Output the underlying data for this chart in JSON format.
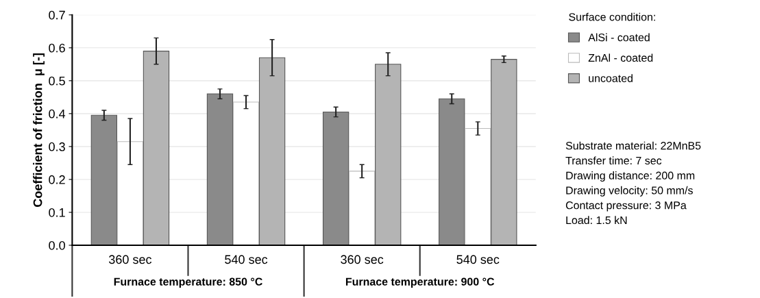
{
  "chart_data": {
    "type": "bar",
    "ylabel": "Coefficient of friction  μ [-]",
    "categories": [
      "360 sec",
      "540 sec",
      "360 sec",
      "540 sec"
    ],
    "series": [
      {
        "name": "AlSi - coated",
        "color": "#8a8a8a",
        "values": [
          0.395,
          0.46,
          0.405,
          0.445
        ],
        "errors": [
          0.015,
          0.015,
          0.015,
          0.015
        ]
      },
      {
        "name": "ZnAl - coated",
        "color": "#ffffff",
        "values": [
          0.315,
          0.435,
          0.225,
          0.355
        ],
        "errors": [
          0.07,
          0.02,
          0.02,
          0.02
        ]
      },
      {
        "name": "uncoated",
        "color": "#b4b4b4",
        "values": [
          0.59,
          0.57,
          0.55,
          0.565
        ],
        "errors": [
          0.04,
          0.055,
          0.035,
          0.01
        ]
      }
    ],
    "ylim": [
      0,
      0.7
    ],
    "yticks": [
      {
        "value": 0,
        "label": "0.0"
      },
      0.1,
      0.2,
      0.3,
      0.4,
      0.5,
      0.6,
      0.7
    ],
    "grid": "y",
    "legend": "right",
    "legend_title": "Surface condition:",
    "annotations": [
      "Furnace temperature: 850 °C",
      "Furnace temperature: 900 °C",
      "Substrate material: 22MnB5",
      "Transfer time: 7 sec",
      "Drawing distance: 200 mm",
      "Drawing velocity: 50 mm/s",
      "Contact pressure: 3 MPa",
      "Load: 1.5 kN"
    ]
  }
}
